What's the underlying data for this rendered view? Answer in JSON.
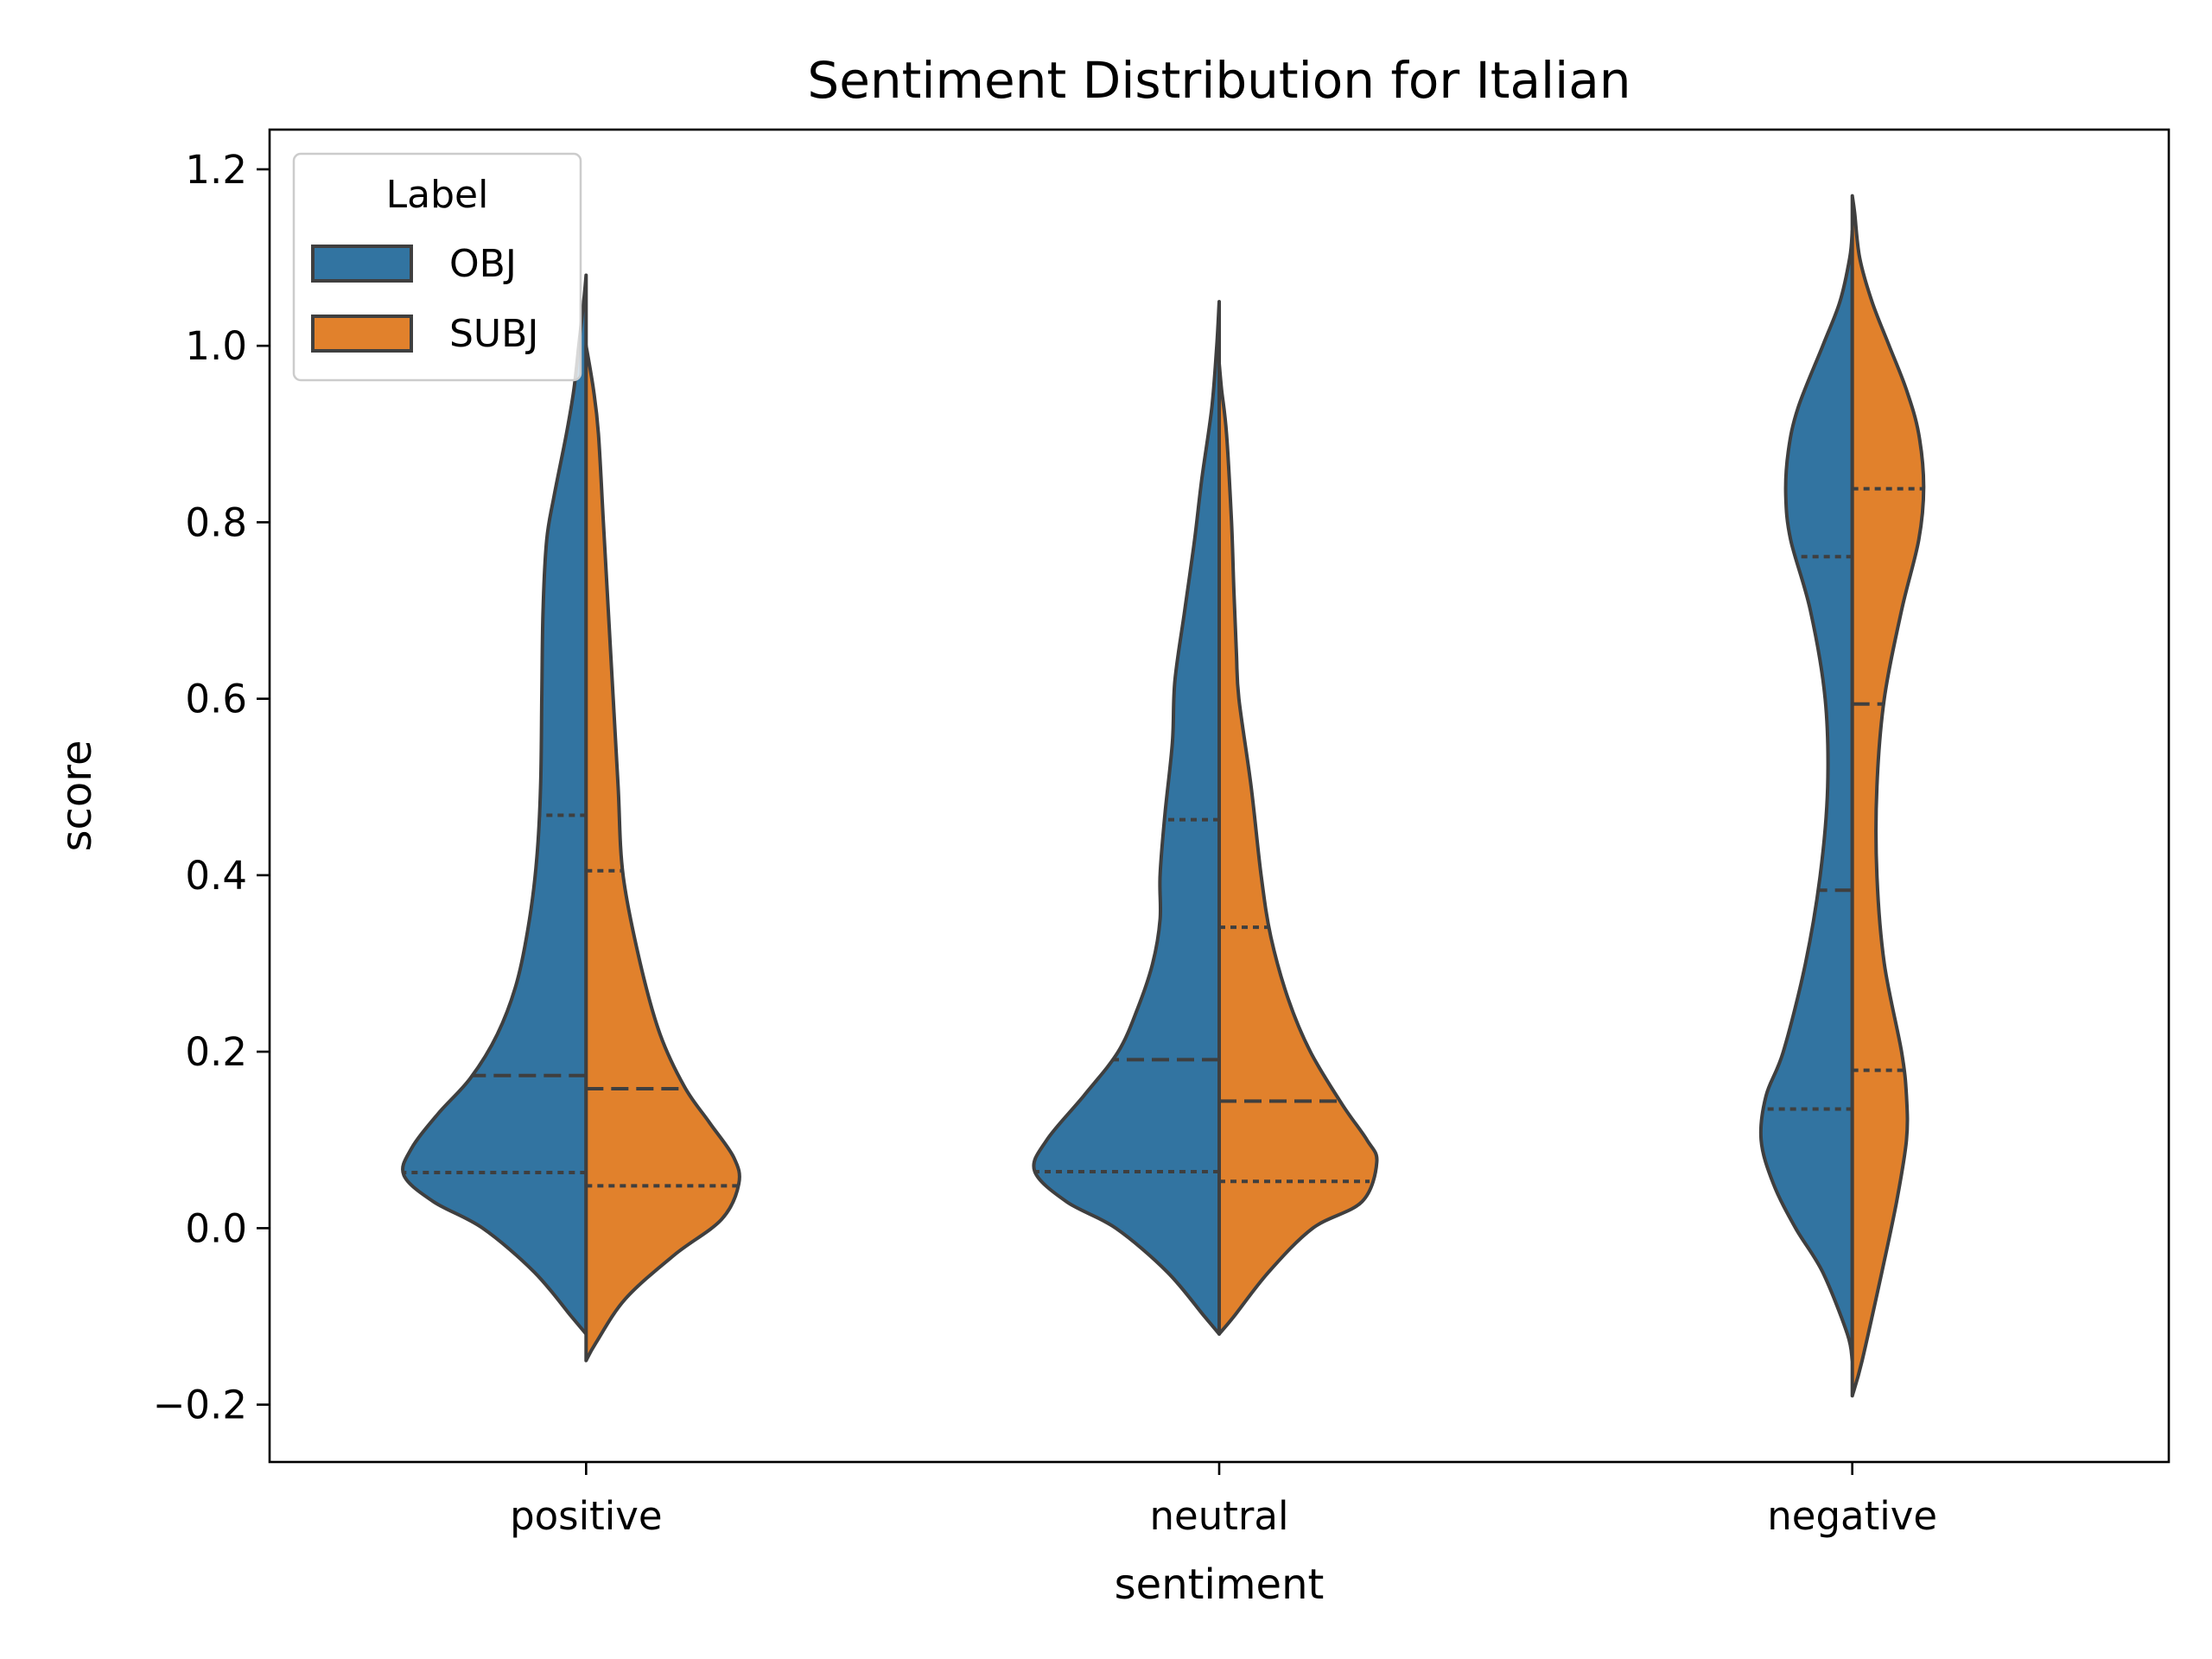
{
  "chart_data": {
    "type": "violin",
    "title": "Sentiment Distribution for Italian",
    "xlabel": "sentiment",
    "ylabel": "score",
    "categories": [
      "positive",
      "neutral",
      "negative"
    ],
    "ylim": [
      -0.265,
      1.245
    ],
    "yticks": [
      -0.2,
      0.0,
      0.2,
      0.4,
      0.6,
      0.8,
      1.0,
      1.2
    ],
    "ytick_labels": [
      "−0.2",
      "0.0",
      "0.2",
      "0.4",
      "0.6",
      "0.8",
      "1.0",
      "1.2"
    ],
    "split": true,
    "inner": "quartile",
    "legend": {
      "title": "Label",
      "placement": "upper-left",
      "entries": [
        {
          "label": "OBJ",
          "color": "#3274a1"
        },
        {
          "label": "SUBJ",
          "color": "#e1812c"
        }
      ]
    },
    "series": [
      {
        "name": "OBJ",
        "side": "left",
        "color": "#3274a1",
        "groups": [
          {
            "category": "positive",
            "range": [
              -0.12,
              1.08
            ],
            "quartiles": [
              0.063,
              0.173,
              0.468
            ],
            "density": [
              [
                -0.12,
                0
              ],
              [
                -0.1,
                0.06
              ],
              [
                -0.05,
                0.21
              ],
              [
                0,
                0.42
              ],
              [
                0.03,
                0.62
              ],
              [
                0.06,
                0.74
              ],
              [
                0.09,
                0.71
              ],
              [
                0.13,
                0.6
              ],
              [
                0.17,
                0.47
              ],
              [
                0.22,
                0.36
              ],
              [
                0.28,
                0.28
              ],
              [
                0.35,
                0.23
              ],
              [
                0.42,
                0.2
              ],
              [
                0.5,
                0.185
              ],
              [
                0.6,
                0.18
              ],
              [
                0.7,
                0.175
              ],
              [
                0.78,
                0.16
              ],
              [
                0.83,
                0.13
              ],
              [
                0.9,
                0.08
              ],
              [
                0.95,
                0.05
              ],
              [
                1.0,
                0.03
              ],
              [
                1.05,
                0.01
              ],
              [
                1.08,
                0
              ]
            ]
          },
          {
            "category": "neutral",
            "range": [
              -0.12,
              1.05
            ],
            "quartiles": [
              0.064,
              0.191,
              0.463
            ],
            "density": [
              [
                -0.12,
                0
              ],
              [
                -0.1,
                0.06
              ],
              [
                -0.05,
                0.21
              ],
              [
                0,
                0.42
              ],
              [
                0.03,
                0.62
              ],
              [
                0.065,
                0.75
              ],
              [
                0.1,
                0.7
              ],
              [
                0.15,
                0.55
              ],
              [
                0.2,
                0.41
              ],
              [
                0.25,
                0.33
              ],
              [
                0.3,
                0.27
              ],
              [
                0.35,
                0.24
              ],
              [
                0.4,
                0.24
              ],
              [
                0.47,
                0.22
              ],
              [
                0.55,
                0.19
              ],
              [
                0.62,
                0.18
              ],
              [
                0.7,
                0.14
              ],
              [
                0.78,
                0.1
              ],
              [
                0.85,
                0.07
              ],
              [
                0.93,
                0.03
              ],
              [
                1.0,
                0.01
              ],
              [
                1.05,
                0
              ]
            ]
          },
          {
            "category": "negative",
            "range": [
              -0.15,
              1.13
            ],
            "quartiles": [
              0.135,
              0.383,
              0.761
            ],
            "density": [
              [
                -0.15,
                0
              ],
              [
                -0.12,
                0.02
              ],
              [
                -0.05,
                0.12
              ],
              [
                0,
                0.23
              ],
              [
                0.05,
                0.32
              ],
              [
                0.1,
                0.37
              ],
              [
                0.15,
                0.35
              ],
              [
                0.2,
                0.28
              ],
              [
                0.3,
                0.19
              ],
              [
                0.4,
                0.13
              ],
              [
                0.5,
                0.1
              ],
              [
                0.6,
                0.11
              ],
              [
                0.7,
                0.17
              ],
              [
                0.78,
                0.25
              ],
              [
                0.83,
                0.27
              ],
              [
                0.88,
                0.26
              ],
              [
                0.93,
                0.22
              ],
              [
                1.0,
                0.12
              ],
              [
                1.05,
                0.05
              ],
              [
                1.1,
                0.01
              ],
              [
                1.13,
                0
              ]
            ]
          }
        ]
      },
      {
        "name": "SUBJ",
        "side": "right",
        "color": "#e1812c",
        "groups": [
          {
            "category": "positive",
            "range": [
              -0.15,
              1.0
            ],
            "quartiles": [
              0.048,
              0.158,
              0.405
            ],
            "density": [
              [
                -0.15,
                0
              ],
              [
                -0.13,
                0.04
              ],
              [
                -0.08,
                0.16
              ],
              [
                -0.03,
                0.36
              ],
              [
                0.01,
                0.55
              ],
              [
                0.05,
                0.62
              ],
              [
                0.08,
                0.6
              ],
              [
                0.12,
                0.5
              ],
              [
                0.16,
                0.4
              ],
              [
                0.22,
                0.3
              ],
              [
                0.3,
                0.22
              ],
              [
                0.4,
                0.15
              ],
              [
                0.5,
                0.13
              ],
              [
                0.6,
                0.11
              ],
              [
                0.7,
                0.09
              ],
              [
                0.8,
                0.07
              ],
              [
                0.9,
                0.05
              ],
              [
                0.95,
                0.03
              ],
              [
                1.0,
                0
              ]
            ]
          },
          {
            "category": "neutral",
            "range": [
              -0.12,
              0.98
            ],
            "quartiles": [
              0.053,
              0.144,
              0.341
            ],
            "density": [
              [
                -0.12,
                0
              ],
              [
                -0.1,
                0.06
              ],
              [
                -0.05,
                0.2
              ],
              [
                0,
                0.38
              ],
              [
                0.03,
                0.58
              ],
              [
                0.075,
                0.64
              ],
              [
                0.1,
                0.6
              ],
              [
                0.14,
                0.5
              ],
              [
                0.2,
                0.37
              ],
              [
                0.26,
                0.28
              ],
              [
                0.33,
                0.21
              ],
              [
                0.4,
                0.17
              ],
              [
                0.5,
                0.13
              ],
              [
                0.6,
                0.08
              ],
              [
                0.65,
                0.07
              ],
              [
                0.72,
                0.06
              ],
              [
                0.8,
                0.05
              ],
              [
                0.9,
                0.03
              ],
              [
                0.95,
                0.01
              ],
              [
                0.98,
                0
              ]
            ]
          },
          {
            "category": "negative",
            "range": [
              -0.19,
              1.17
            ],
            "quartiles": [
              0.179,
              0.594,
              0.838
            ],
            "density": [
              [
                -0.19,
                0
              ],
              [
                -0.15,
                0.04
              ],
              [
                -0.05,
                0.12
              ],
              [
                0.03,
                0.18
              ],
              [
                0.1,
                0.22
              ],
              [
                0.15,
                0.22
              ],
              [
                0.2,
                0.2
              ],
              [
                0.3,
                0.13
              ],
              [
                0.4,
                0.1
              ],
              [
                0.5,
                0.1
              ],
              [
                0.6,
                0.13
              ],
              [
                0.7,
                0.2
              ],
              [
                0.78,
                0.27
              ],
              [
                0.84,
                0.29
              ],
              [
                0.9,
                0.27
              ],
              [
                0.95,
                0.22
              ],
              [
                1.0,
                0.15
              ],
              [
                1.05,
                0.08
              ],
              [
                1.1,
                0.03
              ],
              [
                1.15,
                0.01
              ],
              [
                1.17,
                0
              ]
            ]
          }
        ]
      }
    ]
  }
}
